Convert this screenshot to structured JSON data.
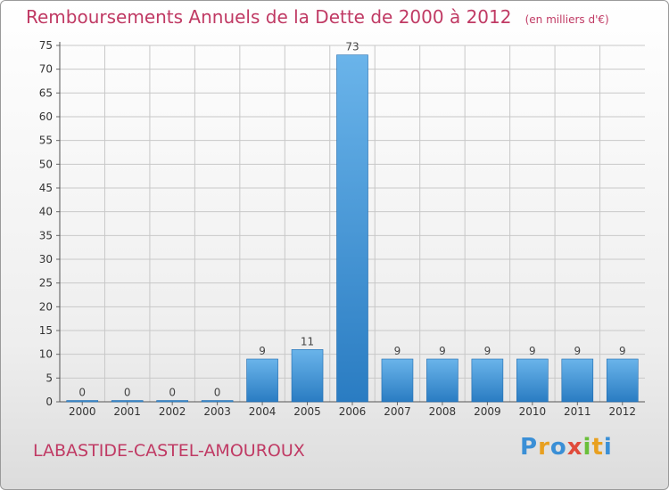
{
  "title": "Remboursements Annuels de la Dette de 2000 à 2012",
  "unit_note": "(en milliers d'€)",
  "commune": "LABASTIDE-CASTEL-AMOUROUX",
  "logo": {
    "letters": [
      "P",
      "r",
      "o",
      "x",
      "i",
      "t",
      "i"
    ],
    "colors": [
      "#3a8fd6",
      "#e8a020",
      "#3a8fd6",
      "#e04a3a",
      "#6abf3a",
      "#e8a020",
      "#3a8fd6"
    ]
  },
  "colors": {
    "title": "#c03a64",
    "bar_light": "#6ab4ea",
    "bar_dark": "#2a7cc2",
    "grid": "#c8c8c8"
  },
  "chart_data": {
    "type": "bar",
    "categories": [
      "2000",
      "2001",
      "2002",
      "2003",
      "2004",
      "2005",
      "2006",
      "2007",
      "2008",
      "2009",
      "2010",
      "2011",
      "2012"
    ],
    "values": [
      0,
      0,
      0,
      0,
      9,
      11,
      73,
      9,
      9,
      9,
      9,
      9,
      9
    ],
    "data_labels": [
      "0",
      "0",
      "0",
      "0",
      "9",
      "11",
      "73",
      "9",
      "9",
      "9",
      "9",
      "9",
      "9"
    ],
    "ylim": [
      0,
      75
    ],
    "yticks": [
      0,
      5,
      10,
      15,
      20,
      25,
      30,
      35,
      40,
      45,
      50,
      55,
      60,
      65,
      70,
      75
    ],
    "grid": true
  }
}
